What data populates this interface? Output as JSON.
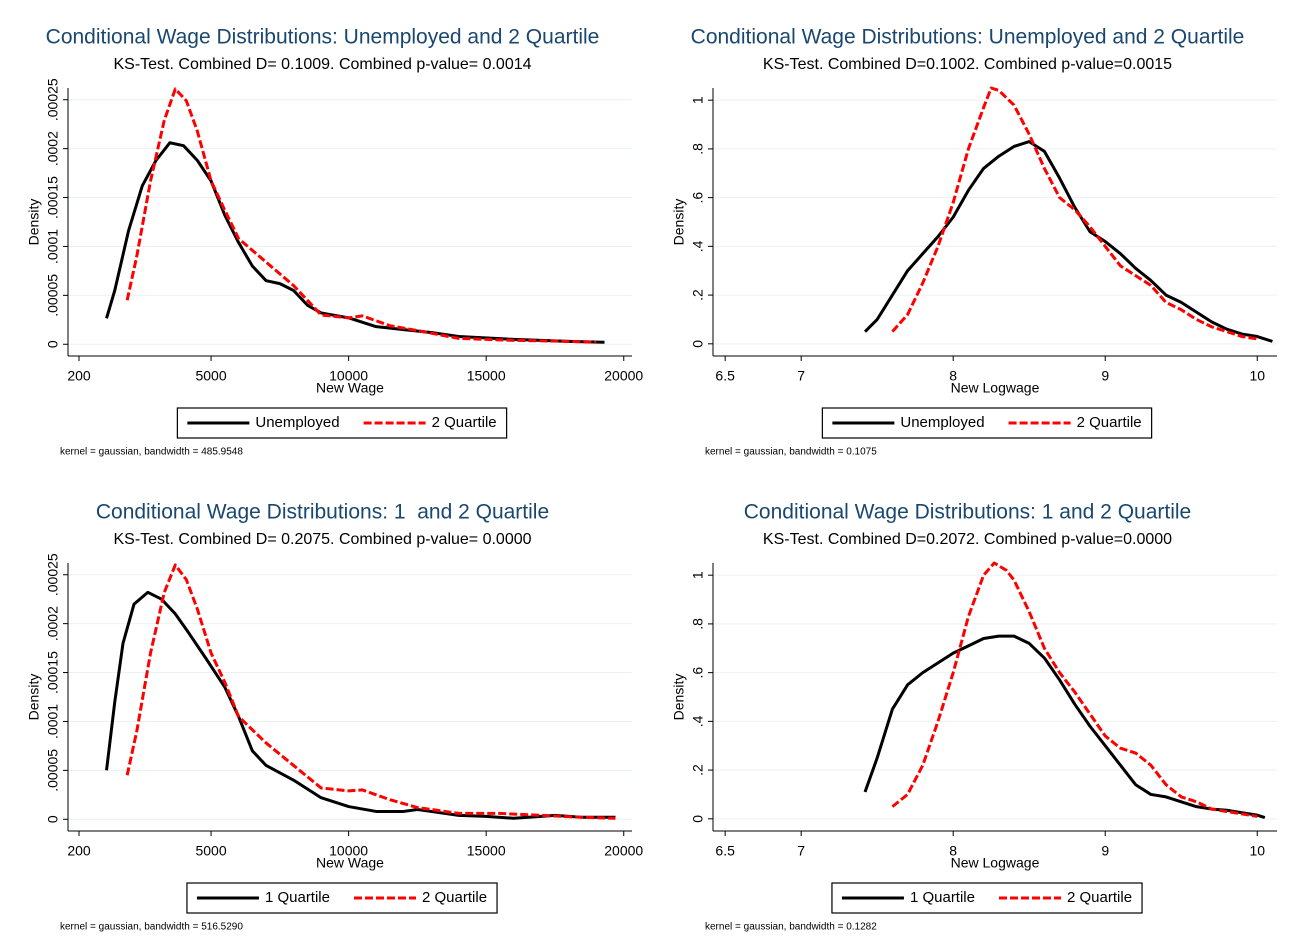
{
  "chart_data": [
    {
      "type": "line",
      "title": "Conditional Wage Distributions: Unemployed and 2 Quartile",
      "subtitle": "KS-Test. Combined D= 0.1009. Combined p-value= 0.0014",
      "x_label": "New Wage",
      "y_label": "Density",
      "note": "kernel = gaussian, bandwidth = 485.9548",
      "xlim": [
        -200,
        20300
      ],
      "xticks": [
        200,
        5000,
        10000,
        15000,
        20000
      ],
      "ylim": [
        -1.2e-05,
        0.000262
      ],
      "yticks": [
        0,
        {
          "value": 5e-05,
          "label": ".00005"
        },
        {
          "value": 0.0001,
          "label": ".0001"
        },
        {
          "value": 0.00015,
          "label": ".00015"
        },
        {
          "value": 0.0002,
          "label": ".0002"
        },
        {
          "value": 0.00025,
          "label": ".00025"
        }
      ],
      "grid": true,
      "series": [
        {
          "name": "Unemployed",
          "color": "#000000",
          "dashed": false,
          "x": [
            1200,
            1500,
            2000,
            2500,
            3000,
            3500,
            4000,
            4500,
            5000,
            5500,
            6000,
            6500,
            7000,
            7500,
            8000,
            8500,
            9000,
            10000,
            11000,
            12000,
            13000,
            14000,
            16000,
            18000,
            19300
          ],
          "values": [
            2.65e-05,
            5.5e-05,
            0.000116,
            0.000162,
            0.000188,
            0.000206,
            0.000203,
            0.000188,
            0.000167,
            0.000132,
            0.000104,
            8e-05,
            6.5e-05,
            6.2e-05,
            5.5e-05,
            4e-05,
            3.2e-05,
            2.7e-05,
            1.8e-05,
            1.5e-05,
            1.2e-05,
            8e-06,
            5e-06,
            3e-06,
            2e-06
          ]
        },
        {
          "name": "2 Quartile",
          "color": "#ff0000",
          "dashed": true,
          "x": [
            1950,
            2300,
            2800,
            3300,
            3700,
            4100,
            4500,
            5000,
            5500,
            6000,
            7000,
            8000,
            9000,
            10000,
            10500,
            11500,
            12500,
            14000,
            16000,
            18000,
            19000
          ],
          "values": [
            4.5e-05,
            9e-05,
            0.000167,
            0.000229,
            0.000261,
            0.000249,
            0.000218,
            0.000167,
            0.000137,
            0.000108,
            8.4e-05,
            6e-05,
            3e-05,
            2.7e-05,
            2.9e-05,
            1.9e-05,
            1.4e-05,
            6e-06,
            4e-06,
            3e-06,
            2e-06
          ]
        }
      ]
    },
    {
      "type": "line",
      "title": "Conditional Wage Distributions: Unemployed and 2 Quartile",
      "subtitle": "KS-Test. Combined D=0.1002. Combined p-value=0.0015",
      "x_label": "New Logwage",
      "y_label": "Density",
      "note": "kernel = gaussian, bandwidth = 0.1075",
      "xlim": [
        6.42,
        10.13
      ],
      "xticks": [
        6.5,
        7,
        8,
        9,
        10
      ],
      "ylim": [
        -0.05,
        1.05
      ],
      "yticks": [
        0,
        {
          "value": 0.2,
          "label": ".2"
        },
        {
          "value": 0.4,
          "label": ".4"
        },
        {
          "value": 0.6,
          "label": ".6"
        },
        {
          "value": 0.8,
          "label": ".8"
        },
        1
      ],
      "grid": true,
      "series": [
        {
          "name": "Unemployed",
          "color": "#000000",
          "dashed": false,
          "x": [
            7.42,
            7.5,
            7.6,
            7.7,
            7.8,
            7.9,
            8.0,
            8.1,
            8.2,
            8.3,
            8.4,
            8.5,
            8.6,
            8.7,
            8.8,
            8.9,
            9.0,
            9.1,
            9.2,
            9.3,
            9.4,
            9.5,
            9.6,
            9.7,
            9.8,
            9.9,
            10.0,
            10.1
          ],
          "values": [
            0.05,
            0.1,
            0.2,
            0.3,
            0.37,
            0.44,
            0.52,
            0.63,
            0.72,
            0.77,
            0.81,
            0.83,
            0.79,
            0.68,
            0.56,
            0.46,
            0.42,
            0.37,
            0.31,
            0.26,
            0.2,
            0.17,
            0.13,
            0.09,
            0.06,
            0.04,
            0.03,
            0.01
          ]
        },
        {
          "name": "2 Quartile",
          "color": "#ff0000",
          "dashed": true,
          "x": [
            7.6,
            7.7,
            7.8,
            7.9,
            8.0,
            8.1,
            8.2,
            8.25,
            8.3,
            8.4,
            8.5,
            8.6,
            8.7,
            8.8,
            8.9,
            9.0,
            9.1,
            9.2,
            9.3,
            9.4,
            9.5,
            9.6,
            9.7,
            9.8,
            9.9,
            10.0
          ],
          "values": [
            0.05,
            0.12,
            0.25,
            0.4,
            0.58,
            0.8,
            0.97,
            1.05,
            1.04,
            0.98,
            0.86,
            0.72,
            0.6,
            0.55,
            0.48,
            0.4,
            0.32,
            0.28,
            0.24,
            0.17,
            0.14,
            0.1,
            0.07,
            0.05,
            0.03,
            0.02
          ]
        }
      ]
    },
    {
      "type": "line",
      "title": "Conditional Wage Distributions: 1  and 2 Quartile",
      "subtitle": "KS-Test. Combined D= 0.2075. Combined p-value= 0.0000",
      "x_label": "New Wage",
      "y_label": "Density",
      "note": "kernel = gaussian, bandwidth = 516.5290",
      "xlim": [
        -200,
        20300
      ],
      "xticks": [
        200,
        5000,
        10000,
        15000,
        20000
      ],
      "ylim": [
        -1.2e-05,
        0.000262
      ],
      "yticks": [
        0,
        {
          "value": 5e-05,
          "label": ".00005"
        },
        {
          "value": 0.0001,
          "label": ".0001"
        },
        {
          "value": 0.00015,
          "label": ".00015"
        },
        {
          "value": 0.0002,
          "label": ".0002"
        },
        {
          "value": 0.00025,
          "label": ".00025"
        }
      ],
      "grid": true,
      "series": [
        {
          "name": "1 Quartile",
          "color": "#000000",
          "dashed": false,
          "x": [
            1200,
            1500,
            1800,
            2200,
            2700,
            3200,
            3700,
            4200,
            4800,
            5500,
            6000,
            6500,
            7000,
            8000,
            9000,
            10000,
            11000,
            12000,
            12500,
            13000,
            14000,
            15000,
            16000,
            17000,
            17500,
            18500,
            19700
          ],
          "values": [
            5e-05,
            0.00012,
            0.00018,
            0.00022,
            0.000232,
            0.000225,
            0.00021,
            0.00019,
            0.000165,
            0.000135,
            0.000105,
            7e-05,
            5.5e-05,
            4e-05,
            2.2e-05,
            1.3e-05,
            8e-06,
            8e-06,
            1e-05,
            8e-06,
            4e-06,
            3e-06,
            1e-06,
            3e-06,
            4e-06,
            2e-06,
            2e-06
          ]
        },
        {
          "name": "2 Quartile",
          "color": "#ff0000",
          "dashed": true,
          "x": [
            1950,
            2300,
            2800,
            3300,
            3700,
            4100,
            4500,
            5000,
            5500,
            6000,
            7000,
            8000,
            9000,
            10000,
            10500,
            11500,
            12500,
            14000,
            15500,
            17000,
            18500,
            19700
          ],
          "values": [
            4.5e-05,
            9e-05,
            0.00017,
            0.000232,
            0.00026,
            0.000245,
            0.000215,
            0.00017,
            0.00014,
            0.000105,
            7.8e-05,
            5.5e-05,
            3.2e-05,
            2.9e-05,
            3e-05,
            2e-05,
            1.2e-05,
            6e-06,
            6e-06,
            4e-06,
            2e-06,
            1e-06
          ]
        }
      ]
    },
    {
      "type": "line",
      "title": "Conditional Wage Distributions: 1 and 2 Quartile",
      "subtitle": "KS-Test. Combined D=0.2072. Combined p-value=0.0000",
      "x_label": "New Logwage",
      "y_label": "Density",
      "note": "kernel = gaussian, bandwidth = 0.1282",
      "xlim": [
        6.42,
        10.13
      ],
      "xticks": [
        6.5,
        7,
        8,
        9,
        10
      ],
      "ylim": [
        -0.05,
        1.05
      ],
      "yticks": [
        0,
        {
          "value": 0.2,
          "label": ".2"
        },
        {
          "value": 0.4,
          "label": ".4"
        },
        {
          "value": 0.6,
          "label": ".6"
        },
        {
          "value": 0.8,
          "label": ".8"
        },
        1
      ],
      "grid": true,
      "series": [
        {
          "name": "1 Quartile",
          "color": "#000000",
          "dashed": false,
          "x": [
            7.42,
            7.5,
            7.6,
            7.7,
            7.8,
            7.9,
            8.0,
            8.1,
            8.2,
            8.3,
            8.4,
            8.5,
            8.6,
            8.7,
            8.8,
            8.9,
            9.0,
            9.1,
            9.2,
            9.3,
            9.4,
            9.5,
            9.6,
            9.7,
            9.8,
            9.9,
            10.0,
            10.05
          ],
          "values": [
            0.11,
            0.25,
            0.45,
            0.55,
            0.6,
            0.64,
            0.68,
            0.71,
            0.74,
            0.75,
            0.75,
            0.72,
            0.66,
            0.57,
            0.47,
            0.38,
            0.3,
            0.22,
            0.14,
            0.1,
            0.09,
            0.07,
            0.05,
            0.04,
            0.035,
            0.025,
            0.015,
            0.005
          ]
        },
        {
          "name": "2 Quartile",
          "color": "#ff0000",
          "dashed": true,
          "x": [
            7.6,
            7.7,
            7.8,
            7.9,
            8.0,
            8.1,
            8.2,
            8.27,
            8.35,
            8.4,
            8.5,
            8.6,
            8.7,
            8.8,
            8.9,
            9.0,
            9.1,
            9.2,
            9.3,
            9.4,
            9.5,
            9.6,
            9.7,
            9.8,
            9.9,
            10.0
          ],
          "values": [
            0.05,
            0.1,
            0.22,
            0.4,
            0.6,
            0.83,
            1.0,
            1.05,
            1.02,
            0.98,
            0.85,
            0.7,
            0.6,
            0.52,
            0.43,
            0.34,
            0.29,
            0.27,
            0.22,
            0.14,
            0.09,
            0.07,
            0.04,
            0.03,
            0.02,
            0.01
          ]
        }
      ]
    }
  ]
}
